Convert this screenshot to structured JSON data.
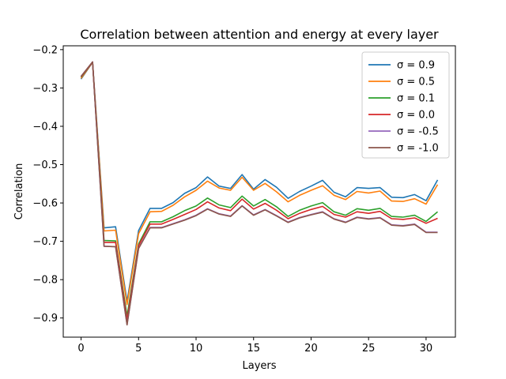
{
  "chart_data": {
    "type": "line",
    "title": "Correlation between attention and energy at every layer",
    "xlabel": "Layers",
    "ylabel": "Correlation",
    "xlim": [
      -1.55,
      32.55
    ],
    "ylim": [
      -0.95,
      -0.19
    ],
    "xticks": [
      0,
      5,
      10,
      15,
      20,
      25,
      30
    ],
    "xtick_labels": [
      "0",
      "5",
      "10",
      "15",
      "20",
      "25",
      "30"
    ],
    "yticks": [
      -0.9,
      -0.8,
      -0.7,
      -0.6,
      -0.5,
      -0.4,
      -0.3,
      -0.2
    ],
    "ytick_labels": [
      "−0.9",
      "−0.8",
      "−0.7",
      "−0.6",
      "−0.5",
      "−0.4",
      "−0.3",
      "−0.2"
    ],
    "grid": false,
    "legend_position": "top-right",
    "x": [
      0,
      1,
      2,
      3,
      4,
      5,
      6,
      7,
      8,
      9,
      10,
      11,
      12,
      13,
      14,
      15,
      16,
      17,
      18,
      19,
      20,
      21,
      22,
      23,
      24,
      25,
      26,
      27,
      28,
      29,
      30,
      31
    ],
    "series": [
      {
        "name": "σ = 0.9",
        "color": "#1f77b4",
        "values": [
          -0.277,
          -0.233,
          -0.665,
          -0.662,
          -0.857,
          -0.672,
          -0.614,
          -0.614,
          -0.599,
          -0.575,
          -0.56,
          -0.532,
          -0.556,
          -0.562,
          -0.526,
          -0.564,
          -0.539,
          -0.559,
          -0.588,
          -0.57,
          -0.556,
          -0.541,
          -0.572,
          -0.584,
          -0.56,
          -0.562,
          -0.56,
          -0.585,
          -0.586,
          -0.578,
          -0.594,
          -0.54
        ]
      },
      {
        "name": "σ = 0.5",
        "color": "#ff7f0e",
        "values": [
          -0.275,
          -0.233,
          -0.673,
          -0.671,
          -0.865,
          -0.68,
          -0.623,
          -0.622,
          -0.606,
          -0.584,
          -0.567,
          -0.543,
          -0.561,
          -0.567,
          -0.533,
          -0.567,
          -0.549,
          -0.571,
          -0.597,
          -0.58,
          -0.567,
          -0.555,
          -0.58,
          -0.591,
          -0.57,
          -0.574,
          -0.569,
          -0.595,
          -0.596,
          -0.589,
          -0.603,
          -0.552
        ]
      },
      {
        "name": "σ = 0.1",
        "color": "#2ca02c",
        "values": [
          -0.272,
          -0.233,
          -0.698,
          -0.699,
          -0.895,
          -0.707,
          -0.649,
          -0.649,
          -0.636,
          -0.62,
          -0.608,
          -0.587,
          -0.605,
          -0.612,
          -0.582,
          -0.608,
          -0.591,
          -0.61,
          -0.635,
          -0.619,
          -0.608,
          -0.599,
          -0.623,
          -0.632,
          -0.615,
          -0.619,
          -0.614,
          -0.635,
          -0.637,
          -0.632,
          -0.648,
          -0.623
        ]
      },
      {
        "name": "σ = 0.0",
        "color": "#d62728",
        "values": [
          -0.271,
          -0.233,
          -0.703,
          -0.703,
          -0.905,
          -0.711,
          -0.655,
          -0.655,
          -0.643,
          -0.63,
          -0.617,
          -0.597,
          -0.613,
          -0.62,
          -0.59,
          -0.616,
          -0.601,
          -0.619,
          -0.641,
          -0.627,
          -0.617,
          -0.609,
          -0.63,
          -0.637,
          -0.623,
          -0.627,
          -0.622,
          -0.641,
          -0.643,
          -0.639,
          -0.653,
          -0.64
        ]
      },
      {
        "name": "σ = -0.5",
        "color": "#9467bd",
        "values": [
          -0.27,
          -0.232,
          -0.713,
          -0.714,
          -0.917,
          -0.718,
          -0.664,
          -0.664,
          -0.654,
          -0.644,
          -0.632,
          -0.615,
          -0.628,
          -0.634,
          -0.607,
          -0.631,
          -0.617,
          -0.633,
          -0.65,
          -0.638,
          -0.63,
          -0.623,
          -0.641,
          -0.65,
          -0.637,
          -0.641,
          -0.638,
          -0.657,
          -0.659,
          -0.655,
          -0.676,
          -0.676
        ]
      },
      {
        "name": "σ = -1.0",
        "color": "#8c564b",
        "values": [
          -0.27,
          -0.232,
          -0.713,
          -0.714,
          -0.918,
          -0.719,
          -0.665,
          -0.665,
          -0.655,
          -0.645,
          -0.633,
          -0.616,
          -0.629,
          -0.635,
          -0.608,
          -0.632,
          -0.618,
          -0.634,
          -0.651,
          -0.639,
          -0.631,
          -0.624,
          -0.642,
          -0.651,
          -0.638,
          -0.642,
          -0.639,
          -0.658,
          -0.66,
          -0.656,
          -0.677,
          -0.677
        ]
      }
    ]
  }
}
